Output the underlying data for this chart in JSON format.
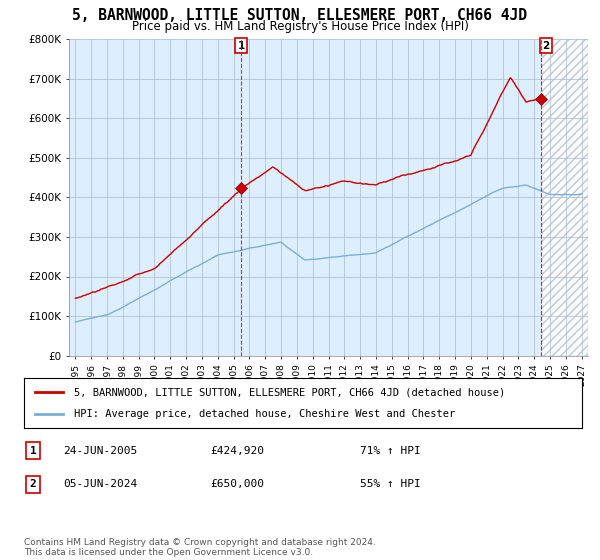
{
  "title": "5, BARNWOOD, LITTLE SUTTON, ELLESMERE PORT, CH66 4JD",
  "subtitle": "Price paid vs. HM Land Registry's House Price Index (HPI)",
  "title_fontsize": 10.5,
  "subtitle_fontsize": 8.5,
  "ylim": [
    0,
    800000
  ],
  "yticks": [
    0,
    100000,
    200000,
    300000,
    400000,
    500000,
    600000,
    700000,
    800000
  ],
  "ytick_labels": [
    "£0",
    "£100K",
    "£200K",
    "£300K",
    "£400K",
    "£500K",
    "£600K",
    "£700K",
    "£800K"
  ],
  "xlim_start": 1994.6,
  "xlim_end": 2027.4,
  "xticks": [
    1995,
    1996,
    1997,
    1998,
    1999,
    2000,
    2001,
    2002,
    2003,
    2004,
    2005,
    2006,
    2007,
    2008,
    2009,
    2010,
    2011,
    2012,
    2013,
    2014,
    2015,
    2016,
    2017,
    2018,
    2019,
    2020,
    2021,
    2022,
    2023,
    2024,
    2025,
    2026,
    2027
  ],
  "red_line_color": "#cc0000",
  "blue_line_color": "#7bafd4",
  "plot_bg_color": "#ddeeff",
  "marker1_x": 2005.48,
  "marker1_y": 424920,
  "marker2_x": 2024.43,
  "marker2_y": 650000,
  "future_hatch_start": 2024.5,
  "legend_entries": [
    "5, BARNWOOD, LITTLE SUTTON, ELLESMERE PORT, CH66 4JD (detached house)",
    "HPI: Average price, detached house, Cheshire West and Chester"
  ],
  "table_rows": [
    {
      "num": "1",
      "date": "24-JUN-2005",
      "price": "£424,920",
      "change": "71% ↑ HPI"
    },
    {
      "num": "2",
      "date": "05-JUN-2024",
      "price": "£650,000",
      "change": "55% ↑ HPI"
    }
  ],
  "footnote": "Contains HM Land Registry data © Crown copyright and database right 2024.\nThis data is licensed under the Open Government Licence v3.0.",
  "grid_color": "#aabbcc",
  "background_color": "#ffffff"
}
